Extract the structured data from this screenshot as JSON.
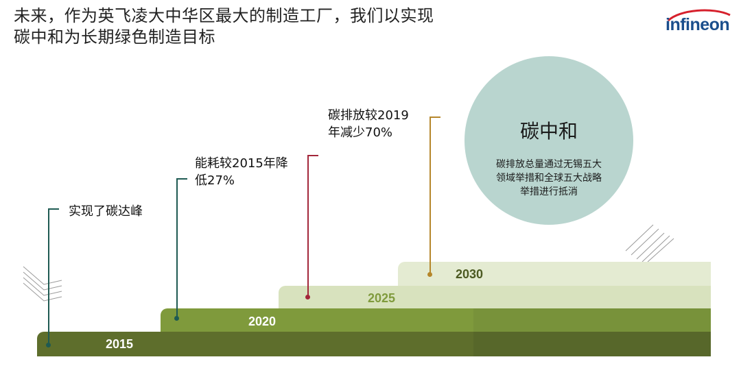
{
  "title": {
    "line1": "未来，作为英飞凌大中华区最大的制造工厂，我们以实现",
    "line2": "碳中和为长期绿色制造目标"
  },
  "logo": {
    "text": "infineon"
  },
  "steps": [
    {
      "year": "2015",
      "color": "#5e6e2c",
      "label_color": "#ffffff"
    },
    {
      "year": "2020",
      "color": "#7f9a3c",
      "label_color": "#ffffff"
    },
    {
      "year": "2025",
      "color": "#d8e2be",
      "label_color": "#7f9a3c"
    },
    {
      "year": "2030",
      "color": "#e4ebd2",
      "label_color": "#4c5a22"
    }
  ],
  "milestones": [
    {
      "text_lines": [
        "实现了碳达峰"
      ],
      "color": "#1e5a52"
    },
    {
      "text_lines": [
        "能耗较2015年降",
        "低27%"
      ],
      "color": "#1e5a52"
    },
    {
      "text_lines": [
        "碳排放较2019",
        "年减少70%"
      ],
      "color": "#a3263a"
    },
    {
      "text_lines": [
        "碳排放较2019",
        "年减少70%"
      ],
      "color": "#b5862a"
    }
  ],
  "goal": {
    "title": "碳中和",
    "desc_lines": [
      "碳排放总量通过无锡五大",
      "领域举措和全球五大战略",
      "举措进行抵消"
    ],
    "color": "#b9d5cf"
  }
}
